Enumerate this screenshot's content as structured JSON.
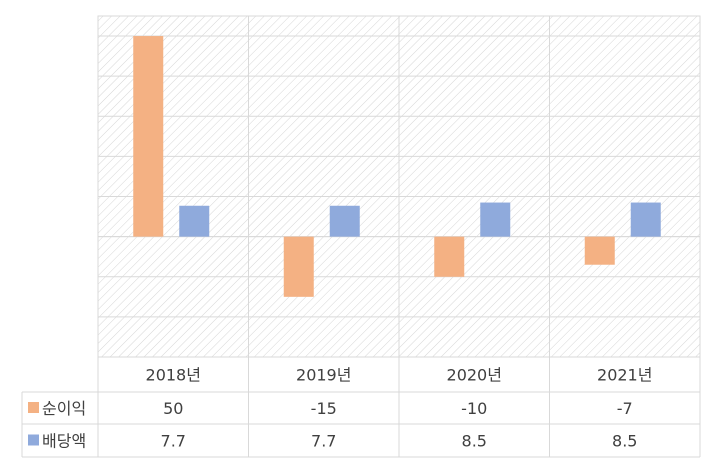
{
  "chart_data": {
    "type": "bar",
    "categories": [
      "2018년",
      "2019년",
      "2020년",
      "2021년"
    ],
    "series": [
      {
        "name": "순이익",
        "values": [
          50,
          -15,
          -10,
          -7
        ],
        "color": "#F4B183"
      },
      {
        "name": "배당액",
        "values": [
          7.7,
          7.7,
          8.5,
          8.5
        ],
        "color": "#8FAADC"
      }
    ],
    "ylim": [
      -30,
      55
    ],
    "grid": true,
    "legend": "table-left",
    "data_table": true,
    "title": "",
    "xlabel": "",
    "ylabel": ""
  }
}
